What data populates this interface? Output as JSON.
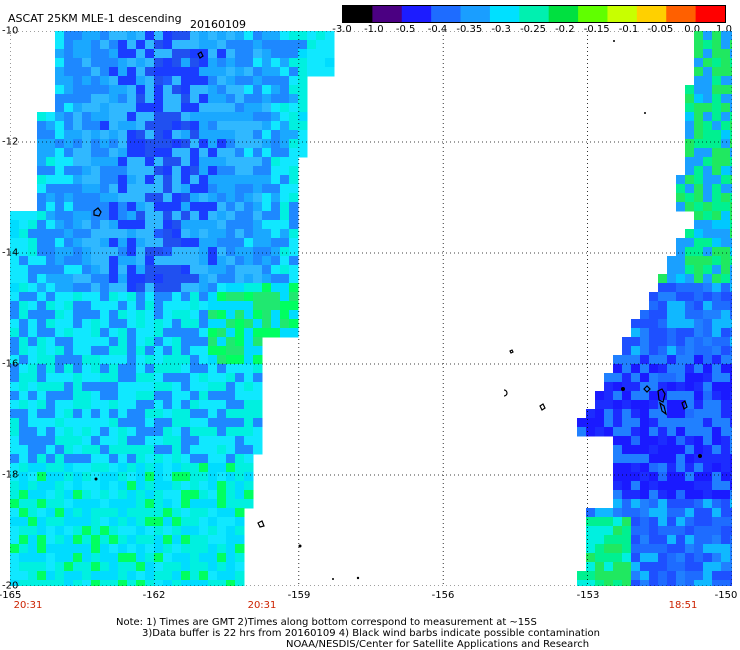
{
  "header": {
    "title": "ASCAT 25KM MLE-1 descending",
    "date": "20160109"
  },
  "colorbar": {
    "labels": [
      "-3.0",
      "-1.0",
      "-0.5",
      "-0.4",
      "-0.35",
      "-0.3",
      "-0.25",
      "-0.2",
      "-0.15",
      "-0.1",
      "-0.05",
      "0.0",
      "1.0"
    ],
    "colors": [
      "#000000",
      "#4b0082",
      "#1c1cff",
      "#1e6cff",
      "#1a9eff",
      "#00e0ff",
      "#00f0b0",
      "#00e040",
      "#60ff00",
      "#c8ff00",
      "#ffd000",
      "#ff6000",
      "#ff0000"
    ]
  },
  "axes": {
    "lon_labels": [
      "-165",
      "-162",
      "-159",
      "-156",
      "-153",
      "-150"
    ],
    "lat_labels": [
      "-10",
      "-12",
      "-14",
      "-16",
      "-18",
      "-20"
    ],
    "lon_range": [
      -165,
      -150
    ],
    "lat_range": [
      -20,
      -10
    ]
  },
  "times": [
    "20:31",
    "20:31",
    "18:51"
  ],
  "notes": [
    "Note: 1) Times are GMT 2)Times along bottom correspond to measurement at ~15S",
    "3)Data buffer is 22 hrs from 20160109 4) Black wind barbs indicate possible contamination",
    "NOAA/NESDIS/Center for Satellite Applications and Research"
  ]
}
